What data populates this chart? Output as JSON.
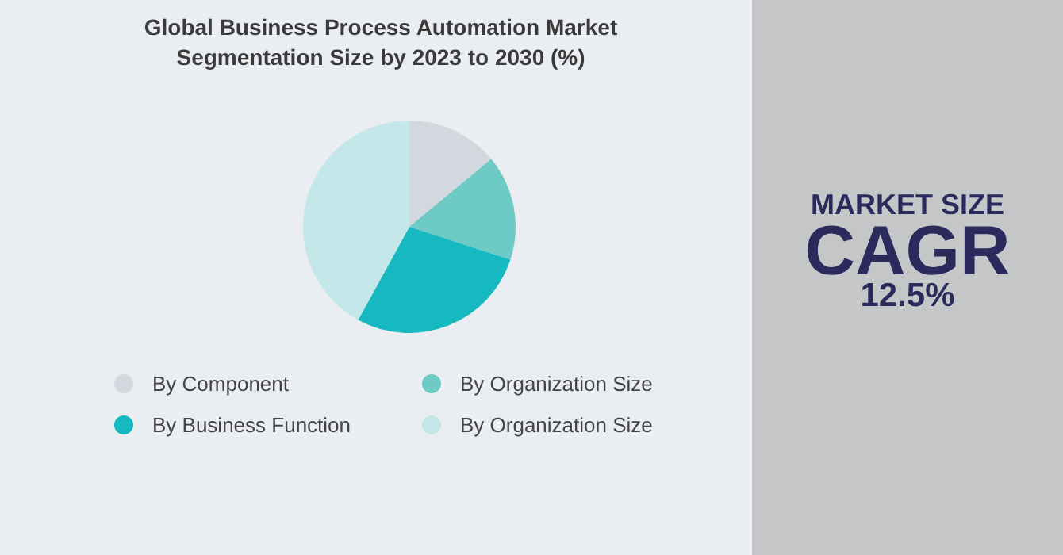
{
  "chart_data": {
    "type": "pie",
    "title": "Global Business Process Automation Market Segmentation Size by 2023 to 2030 (%)",
    "categories": [
      "By Component",
      "By Organization Size",
      "By Business Function",
      "By Organization Size"
    ],
    "values": [
      14,
      16,
      28,
      42
    ],
    "colors": [
      "#d3d8de",
      "#6ecac5",
      "#17b9c1",
      "#c4e8ea"
    ],
    "legend": "bottom",
    "annotations": [
      "MARKET SIZE",
      "CAGR",
      "12.5%"
    ]
  }
}
